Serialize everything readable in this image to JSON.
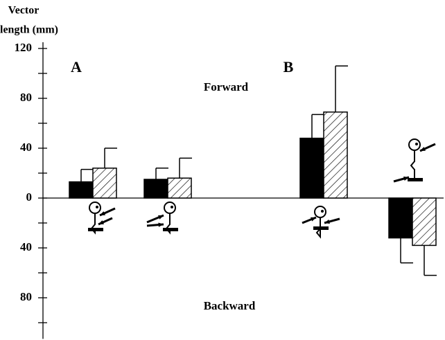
{
  "chart_data": {
    "type": "bar",
    "ylabel": [
      "Vector",
      "length  (mm)"
    ],
    "annotations": [
      "A",
      "B",
      "Forward",
      "Backward"
    ],
    "categories": [
      null,
      null,
      null,
      null,
      null
    ],
    "series": [
      {
        "color": "#000000",
        "hatch": false,
        "values": [
          13,
          15,
          null,
          48,
          -32
        ],
        "errors": [
          10,
          9,
          null,
          19,
          20
        ]
      },
      {
        "color": "#ffffff",
        "hatch": true,
        "values": [
          24,
          16,
          null,
          69,
          -38
        ],
        "errors": [
          16,
          16,
          null,
          37,
          24
        ]
      }
    ],
    "ylim": [
      -113,
      125
    ],
    "yticks": [
      {
        "value": 120,
        "label": "120"
      },
      80,
      40,
      0,
      {
        "value": -40,
        "label": "40"
      },
      {
        "value": -80,
        "label": "80"
      }
    ],
    "yminorticks": [
      100,
      60,
      20,
      -20,
      -60,
      -100
    ]
  }
}
